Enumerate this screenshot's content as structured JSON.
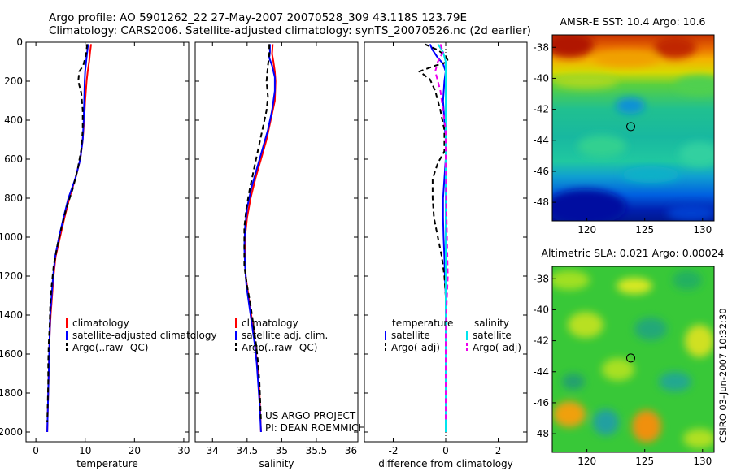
{
  "header": {
    "line1": "Argo profile: AO 5901262_22 27-May-2007 20070528_309 43.118S 123.79E",
    "line2": "Climatology: CARS2006. Satellite-adjusted climatology: synTS_20070526.nc (2d earlier)"
  },
  "credits": {
    "project": "US ARGO PROJECT",
    "pi": "PI: DEAN ROEMMICH",
    "stamp": "CSIRO 03-Jun-2007 10:32:30"
  },
  "chart_data": [
    {
      "id": "temperature",
      "type": "line",
      "xlabel": "temperature",
      "xlim": [
        -2,
        31
      ],
      "ylim": [
        0,
        2050
      ],
      "y_reversed": true,
      "xticks": [
        0,
        10,
        20,
        30
      ],
      "yticks": [
        0,
        200,
        400,
        600,
        800,
        1000,
        1200,
        1400,
        1600,
        1800,
        2000
      ],
      "legend": [
        "climatology",
        "satellite-adjusted climatology",
        "Argo(..raw -QC)"
      ],
      "series": [
        {
          "name": "climatology",
          "color": "#ff0000",
          "dash": false,
          "points": [
            [
              11.2,
              10
            ],
            [
              11.0,
              50
            ],
            [
              10.8,
              100
            ],
            [
              10.5,
              150
            ],
            [
              10.3,
              200
            ],
            [
              10.0,
              300
            ],
            [
              9.8,
              400
            ],
            [
              9.5,
              500
            ],
            [
              9.0,
              600
            ],
            [
              8.0,
              700
            ],
            [
              6.8,
              800
            ],
            [
              5.8,
              900
            ],
            [
              4.9,
              1000
            ],
            [
              4.0,
              1100
            ],
            [
              3.6,
              1200
            ],
            [
              3.3,
              1300
            ],
            [
              3.0,
              1400
            ],
            [
              2.8,
              1500
            ],
            [
              2.7,
              1600
            ],
            [
              2.6,
              1700
            ],
            [
              2.5,
              1800
            ],
            [
              2.4,
              1900
            ],
            [
              2.3,
              2000
            ]
          ]
        },
        {
          "name": "satellite-adjusted climatology",
          "color": "#0000ff",
          "dash": false,
          "points": [
            [
              10.6,
              10
            ],
            [
              10.4,
              50
            ],
            [
              10.2,
              100
            ],
            [
              10.0,
              150
            ],
            [
              9.9,
              200
            ],
            [
              9.8,
              300
            ],
            [
              9.7,
              400
            ],
            [
              9.5,
              500
            ],
            [
              9.0,
              600
            ],
            [
              8.0,
              700
            ],
            [
              6.6,
              800
            ],
            [
              5.6,
              900
            ],
            [
              4.7,
              1000
            ],
            [
              3.9,
              1100
            ],
            [
              3.5,
              1200
            ],
            [
              3.2,
              1300
            ],
            [
              2.9,
              1400
            ],
            [
              2.8,
              1500
            ],
            [
              2.7,
              1600
            ],
            [
              2.6,
              1700
            ],
            [
              2.5,
              1800
            ],
            [
              2.4,
              1900
            ],
            [
              2.3,
              2000
            ]
          ]
        },
        {
          "name": "Argo(..raw -QC)",
          "color": "#000000",
          "dash": true,
          "points": [
            [
              10.4,
              10
            ],
            [
              10.2,
              60
            ],
            [
              9.6,
              120
            ],
            [
              8.8,
              150
            ],
            [
              8.6,
              200
            ],
            [
              9.2,
              260
            ],
            [
              9.5,
              350
            ],
            [
              9.5,
              450
            ],
            [
              9.2,
              550
            ],
            [
              8.5,
              650
            ],
            [
              7.5,
              750
            ],
            [
              6.2,
              850
            ],
            [
              5.2,
              950
            ],
            [
              4.3,
              1050
            ],
            [
              3.6,
              1150
            ],
            [
              3.2,
              1250
            ],
            [
              2.9,
              1350
            ],
            [
              2.8,
              1450
            ],
            [
              2.6,
              1550
            ],
            [
              2.5,
              1650
            ],
            [
              2.5,
              1750
            ],
            [
              2.4,
              1850
            ],
            [
              2.3,
              1950
            ]
          ]
        }
      ]
    },
    {
      "id": "salinity",
      "type": "line",
      "xlabel": "salinity",
      "xlim": [
        33.75,
        36.1
      ],
      "ylim": [
        0,
        2050
      ],
      "y_reversed": true,
      "xticks": [
        34,
        34.5,
        35,
        35.5,
        36
      ],
      "legend": [
        "climatology",
        "satellite adj. clim.",
        "Argo(..raw -QC)"
      ],
      "series": [
        {
          "name": "climatology",
          "color": "#ff0000",
          "dash": false,
          "points": [
            [
              34.87,
              10
            ],
            [
              34.86,
              60
            ],
            [
              34.88,
              100
            ],
            [
              34.9,
              150
            ],
            [
              34.91,
              200
            ],
            [
              34.9,
              300
            ],
            [
              34.84,
              400
            ],
            [
              34.78,
              500
            ],
            [
              34.7,
              600
            ],
            [
              34.62,
              700
            ],
            [
              34.55,
              800
            ],
            [
              34.5,
              900
            ],
            [
              34.47,
              1000
            ],
            [
              34.47,
              1100
            ],
            [
              34.48,
              1200
            ],
            [
              34.52,
              1300
            ],
            [
              34.56,
              1400
            ],
            [
              34.6,
              1500
            ],
            [
              34.63,
              1600
            ],
            [
              34.66,
              1700
            ],
            [
              34.68,
              1800
            ],
            [
              34.69,
              1900
            ],
            [
              34.7,
              2000
            ]
          ]
        },
        {
          "name": "satellite adj. clim.",
          "color": "#0000ff",
          "dash": false,
          "points": [
            [
              34.83,
              10
            ],
            [
              34.83,
              50
            ],
            [
              34.82,
              80
            ],
            [
              34.86,
              120
            ],
            [
              34.9,
              180
            ],
            [
              34.9,
              250
            ],
            [
              34.86,
              350
            ],
            [
              34.8,
              450
            ],
            [
              34.72,
              550
            ],
            [
              34.64,
              650
            ],
            [
              34.56,
              750
            ],
            [
              34.5,
              850
            ],
            [
              34.47,
              950
            ],
            [
              34.46,
              1050
            ],
            [
              34.47,
              1150
            ],
            [
              34.49,
              1250
            ],
            [
              34.53,
              1350
            ],
            [
              34.57,
              1450
            ],
            [
              34.61,
              1550
            ],
            [
              34.64,
              1650
            ],
            [
              34.66,
              1750
            ],
            [
              34.68,
              1850
            ],
            [
              34.7,
              2000
            ]
          ]
        },
        {
          "name": "Argo(..raw -QC)",
          "color": "#000000",
          "dash": true,
          "points": [
            [
              34.82,
              10
            ],
            [
              34.82,
              60
            ],
            [
              34.8,
              120
            ],
            [
              34.78,
              200
            ],
            [
              34.8,
              280
            ],
            [
              34.78,
              350
            ],
            [
              34.72,
              450
            ],
            [
              34.66,
              550
            ],
            [
              34.6,
              650
            ],
            [
              34.54,
              750
            ],
            [
              34.49,
              850
            ],
            [
              34.46,
              950
            ],
            [
              34.46,
              1050
            ],
            [
              34.46,
              1150
            ],
            [
              34.5,
              1250
            ],
            [
              34.55,
              1350
            ],
            [
              34.59,
              1450
            ],
            [
              34.63,
              1550
            ],
            [
              34.66,
              1650
            ],
            [
              34.68,
              1750
            ],
            [
              34.69,
              1850
            ],
            [
              34.7,
              1950
            ]
          ]
        }
      ]
    },
    {
      "id": "difference",
      "type": "line",
      "xlabel": "difference from climatology",
      "xlim": [
        -3.1,
        3.1
      ],
      "ylim": [
        0,
        2050
      ],
      "y_reversed": true,
      "xticks": [
        -2,
        0,
        2
      ],
      "legend_left_title": "temperature",
      "legend_right_title": "salinity",
      "legend": [
        "satellite",
        "Argo(-adj)",
        "satellite",
        "Argo(-adj)"
      ],
      "series": [
        {
          "name": "temperature satellite",
          "color": "#0000ff",
          "dash": false,
          "points": [
            [
              -0.6,
              10
            ],
            [
              -0.5,
              40
            ],
            [
              -0.3,
              80
            ],
            [
              -0.1,
              110
            ],
            [
              0.0,
              150
            ],
            [
              -0.05,
              200
            ],
            [
              -0.1,
              300
            ],
            [
              -0.05,
              400
            ],
            [
              0.0,
              500
            ],
            [
              0.0,
              600
            ],
            [
              -0.05,
              700
            ],
            [
              -0.1,
              800
            ],
            [
              -0.1,
              900
            ],
            [
              -0.08,
              1000
            ],
            [
              -0.05,
              1100
            ],
            [
              -0.03,
              1200
            ],
            [
              0.0,
              1300
            ]
          ]
        },
        {
          "name": "temperature Argo(-adj)",
          "color": "#000000",
          "dash": true,
          "points": [
            [
              -0.8,
              10
            ],
            [
              -0.3,
              40
            ],
            [
              0.0,
              70
            ],
            [
              0.1,
              100
            ],
            [
              -0.4,
              120
            ],
            [
              -1.0,
              150
            ],
            [
              -0.6,
              190
            ],
            [
              -0.4,
              250
            ],
            [
              -0.2,
              350
            ],
            [
              -0.05,
              450
            ],
            [
              -0.05,
              560
            ],
            [
              -0.3,
              620
            ],
            [
              -0.5,
              700
            ],
            [
              -0.5,
              800
            ],
            [
              -0.45,
              900
            ],
            [
              -0.3,
              1000
            ],
            [
              -0.15,
              1100
            ],
            [
              -0.05,
              1200
            ],
            [
              0.0,
              1300
            ]
          ]
        },
        {
          "name": "salinity satellite",
          "color": "#00e5ee",
          "dash": false,
          "points": [
            [
              -0.3,
              10
            ],
            [
              -0.1,
              50
            ],
            [
              0.0,
              100
            ],
            [
              0.0,
              200
            ],
            [
              0.0,
              500
            ],
            [
              0.0,
              1000
            ],
            [
              0.0,
              1500
            ],
            [
              0.0,
              2000
            ]
          ]
        },
        {
          "name": "salinity Argo(-adj)",
          "color": "#ee00ee",
          "dash": true,
          "points": [
            [
              -0.2,
              10
            ],
            [
              -0.1,
              50
            ],
            [
              -0.3,
              100
            ],
            [
              -0.4,
              150
            ],
            [
              -0.2,
              250
            ],
            [
              -0.1,
              350
            ],
            [
              0.0,
              450
            ],
            [
              0.0,
              600
            ],
            [
              0.02,
              800
            ],
            [
              0.05,
              1000
            ],
            [
              0.08,
              1200
            ],
            [
              0.05,
              1300
            ],
            [
              0.02,
              1400
            ],
            [
              0.0,
              1500
            ],
            [
              0.0,
              1700
            ],
            [
              0.0,
              1950
            ]
          ]
        }
      ]
    },
    {
      "id": "sst_map",
      "type": "heatmap",
      "title": "AMSR-E SST: 10.4  Argo: 10.6",
      "xlim": [
        117,
        131
      ],
      "ylim": [
        -49.2,
        -37.2
      ],
      "xticks": [
        120,
        125,
        130
      ],
      "yticks": [
        -38,
        -40,
        -42,
        -44,
        -46,
        -48
      ],
      "marker": [
        123.79,
        -43.118
      ]
    },
    {
      "id": "sla_map",
      "type": "heatmap",
      "title": "Altimetric SLA: 0.021  Argo: 0.00024",
      "xlim": [
        117,
        131
      ],
      "ylim": [
        -49.2,
        -37.2
      ],
      "xticks": [
        120,
        125,
        130
      ],
      "yticks": [
        -38,
        -40,
        -42,
        -44,
        -46,
        -48
      ],
      "marker": [
        123.79,
        -43.118
      ]
    }
  ]
}
